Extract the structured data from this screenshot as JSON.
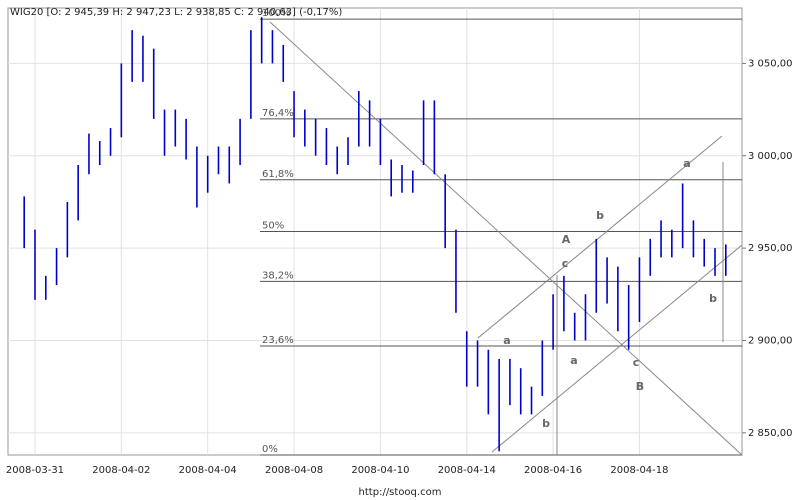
{
  "chart_data": {
    "type": "ohlc",
    "title": "WIG20 [O: 2 945,39  H: 2 947,23  L: 2 938,85  C: 2 940,63] (-0,17%)",
    "footer": "http://stooq.com",
    "color": "#0000cc",
    "categories": [
      null,
      null,
      "2008-03-31",
      null,
      null,
      null,
      null,
      null,
      null,
      null,
      "2008-04-02",
      null,
      null,
      null,
      null,
      null,
      null,
      null,
      "2008-04-04",
      null,
      null,
      null,
      null,
      null,
      null,
      null,
      "2008-04-08",
      null,
      null,
      null,
      null,
      null,
      null,
      null,
      "2008-04-10",
      null,
      null,
      null,
      null,
      null,
      null,
      null,
      "2008-04-14",
      null,
      null,
      null,
      null,
      null,
      null,
      null,
      "2008-04-16",
      null,
      null,
      null,
      null,
      null,
      null,
      null,
      "2008-04-18",
      null,
      null,
      null,
      null,
      null,
      null,
      null,
      null,
      null
    ],
    "high": [
      null,
      2978,
      2960,
      2935,
      2950,
      2975,
      2995,
      3012,
      3008,
      3015,
      3050,
      3068,
      3065,
      3058,
      3025,
      3025,
      3020,
      3005,
      3000,
      3005,
      3005,
      3020,
      3068,
      3075,
      3068,
      3060,
      3035,
      3025,
      3020,
      3015,
      3005,
      3010,
      3035,
      3030,
      3020,
      2998,
      2995,
      2992,
      3030,
      3030,
      2990,
      2960,
      2905,
      2900,
      2895,
      2890,
      2890,
      2885,
      2875,
      2900,
      2925,
      2935,
      2915,
      2925,
      2955,
      2945,
      2940,
      2930,
      2945,
      2955,
      2965,
      2960,
      2985,
      2965,
      2955,
      2950,
      2952,
      null
    ],
    "low": [
      null,
      2950,
      2922,
      2922,
      2930,
      2945,
      2965,
      2990,
      2995,
      3000,
      3010,
      3040,
      3040,
      3020,
      3000,
      3005,
      2998,
      2972,
      2980,
      2990,
      2985,
      2995,
      3020,
      3050,
      3050,
      3040,
      3010,
      3005,
      3000,
      2995,
      2990,
      2995,
      3005,
      3005,
      2995,
      2978,
      2980,
      2980,
      2995,
      2990,
      2950,
      2915,
      2875,
      2875,
      2860,
      2840,
      2865,
      2860,
      2860,
      2870,
      2895,
      2905,
      2900,
      2900,
      2915,
      2920,
      2905,
      2895,
      2910,
      2935,
      2945,
      2945,
      2950,
      2945,
      2940,
      2935,
      2935,
      null
    ],
    "ylim": [
      2838,
      3080
    ],
    "yticks": [
      {
        "value": 2850,
        "label": "2 850,00"
      },
      {
        "value": 2900,
        "label": "2 900,00"
      },
      {
        "value": 2950,
        "label": "2 950,00"
      },
      {
        "value": 3000,
        "label": "3 000,00"
      },
      {
        "value": 3050,
        "label": "3 050,00"
      }
    ],
    "grid": true,
    "levels": [
      {
        "value": 3074,
        "label": "100%"
      },
      {
        "value": 3020,
        "label": "76,4%"
      },
      {
        "value": 2987,
        "label": "61,8%"
      },
      {
        "value": 2959,
        "label": "50%"
      },
      {
        "value": 2932,
        "label": "38,2%"
      },
      {
        "value": 2897,
        "label": "23,6%"
      },
      {
        "value": 2838,
        "label": "0%"
      }
    ],
    "annotations": [
      "a",
      "b",
      "c",
      "A",
      "a",
      "b",
      "c",
      "B",
      "a",
      "b"
    ]
  }
}
